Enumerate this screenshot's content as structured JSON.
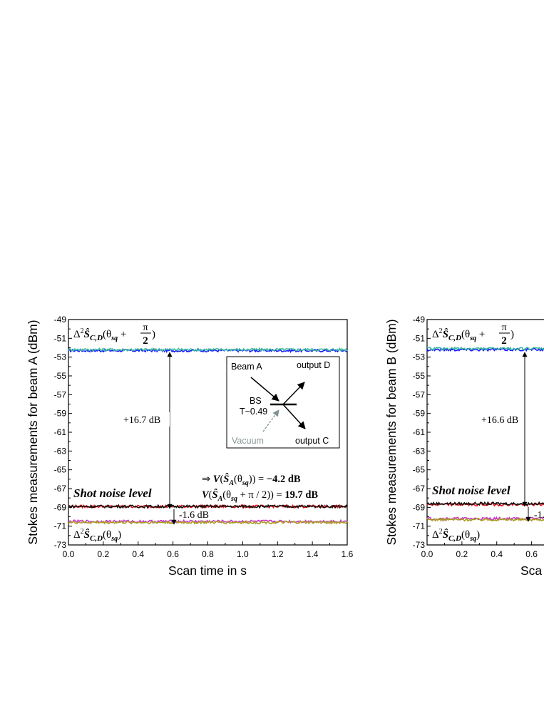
{
  "chart_data": [
    {
      "type": "line",
      "ylabel": "Stokes measurements for beam A (dBm)",
      "xlabel": "Scan time in s",
      "xlim": [
        0.0,
        1.6
      ],
      "ylim": [
        -73,
        -49
      ],
      "xticks": [
        "0.0",
        "0.2",
        "0.4",
        "0.6",
        "0.8",
        "1.0",
        "1.2",
        "1.4",
        "1.6"
      ],
      "yticks": [
        "-49",
        "-51",
        "-53",
        "-55",
        "-57",
        "-59",
        "-61",
        "-63",
        "-65",
        "-67",
        "-69",
        "-71",
        "-73"
      ],
      "series": [
        {
          "color": "#1a1aff",
          "x": [
            0.0,
            1.6
          ],
          "y": [
            -52.3,
            -52.3
          ]
        },
        {
          "color": "#3cb9a0",
          "x": [
            0.0,
            1.6
          ],
          "y": [
            -52.2,
            -52.2
          ]
        },
        {
          "color": "#e8161b",
          "x": [
            0.0,
            1.6
          ],
          "y": [
            -68.9,
            -68.9
          ]
        },
        {
          "color": "#111111",
          "x": [
            0.0,
            1.6
          ],
          "y": [
            -68.9,
            -68.9
          ]
        },
        {
          "color": "#cc33cc",
          "x": [
            0.0,
            1.6
          ],
          "y": [
            -70.5,
            -70.5
          ]
        },
        {
          "color": "#a8a020",
          "x": [
            0.0,
            1.6
          ],
          "y": [
            -70.6,
            -70.6
          ]
        }
      ],
      "annotations": {
        "top_label": "Δ²Ŝ_C,D(θ_sq + π/2)",
        "bottom_label": "Δ²Ŝ_C,D(θ_sq)",
        "arrow_gain": "+16.7 dB",
        "arrow_squeeze": "-1.6 dB",
        "shot_noise": "Shot noise level",
        "result_1": "⇒ V(Ŝ_A(θ_sq)) = −4.2 dB",
        "result_2": "V(Ŝ_A(θ_sq + π / 2)) = 19.7 dB"
      },
      "inset": {
        "beam_a": "Beam A",
        "output_d": "output D",
        "bs": "BS",
        "transmission": "T~0.49",
        "vacuum": "Vacuum",
        "output_c": "output C"
      }
    },
    {
      "type": "line",
      "ylabel": "Stokes measurements for beam B (dBm)",
      "xlabel": "Sca",
      "xlim": [
        0.0,
        1.6
      ],
      "ylim": [
        -73,
        -49
      ],
      "xticks": [
        "0.0",
        "0.2",
        "0.4",
        "0.6"
      ],
      "yticks": [
        "-49",
        "-51",
        "-53",
        "-55",
        "-57",
        "-59",
        "-61",
        "-63",
        "-65",
        "-67",
        "-69",
        "-71",
        "-73"
      ],
      "series": [
        {
          "color": "#1a1aff",
          "x": [
            0.0,
            0.68
          ],
          "y": [
            -52.2,
            -52.2
          ]
        },
        {
          "color": "#3cb9a0",
          "x": [
            0.0,
            0.68
          ],
          "y": [
            -52.1,
            -52.1
          ]
        },
        {
          "color": "#e8161b",
          "x": [
            0.0,
            0.68
          ],
          "y": [
            -68.7,
            -68.7
          ]
        },
        {
          "color": "#111111",
          "x": [
            0.0,
            0.68
          ],
          "y": [
            -68.6,
            -68.6
          ]
        },
        {
          "color": "#cc33cc",
          "x": [
            0.0,
            0.68
          ],
          "y": [
            -70.2,
            -70.2
          ]
        },
        {
          "color": "#a8a020",
          "x": [
            0.0,
            0.68
          ],
          "y": [
            -70.3,
            -70.3
          ]
        }
      ],
      "annotations": {
        "top_label": "Δ²Ŝ_C,D(θ_sq + π/2)",
        "bottom_label": "Δ²Ŝ_C,D(θ_sq)",
        "arrow_gain": "+16.6 dB",
        "arrow_squeeze": "-1.",
        "shot_noise": "Shot noise level"
      }
    }
  ]
}
